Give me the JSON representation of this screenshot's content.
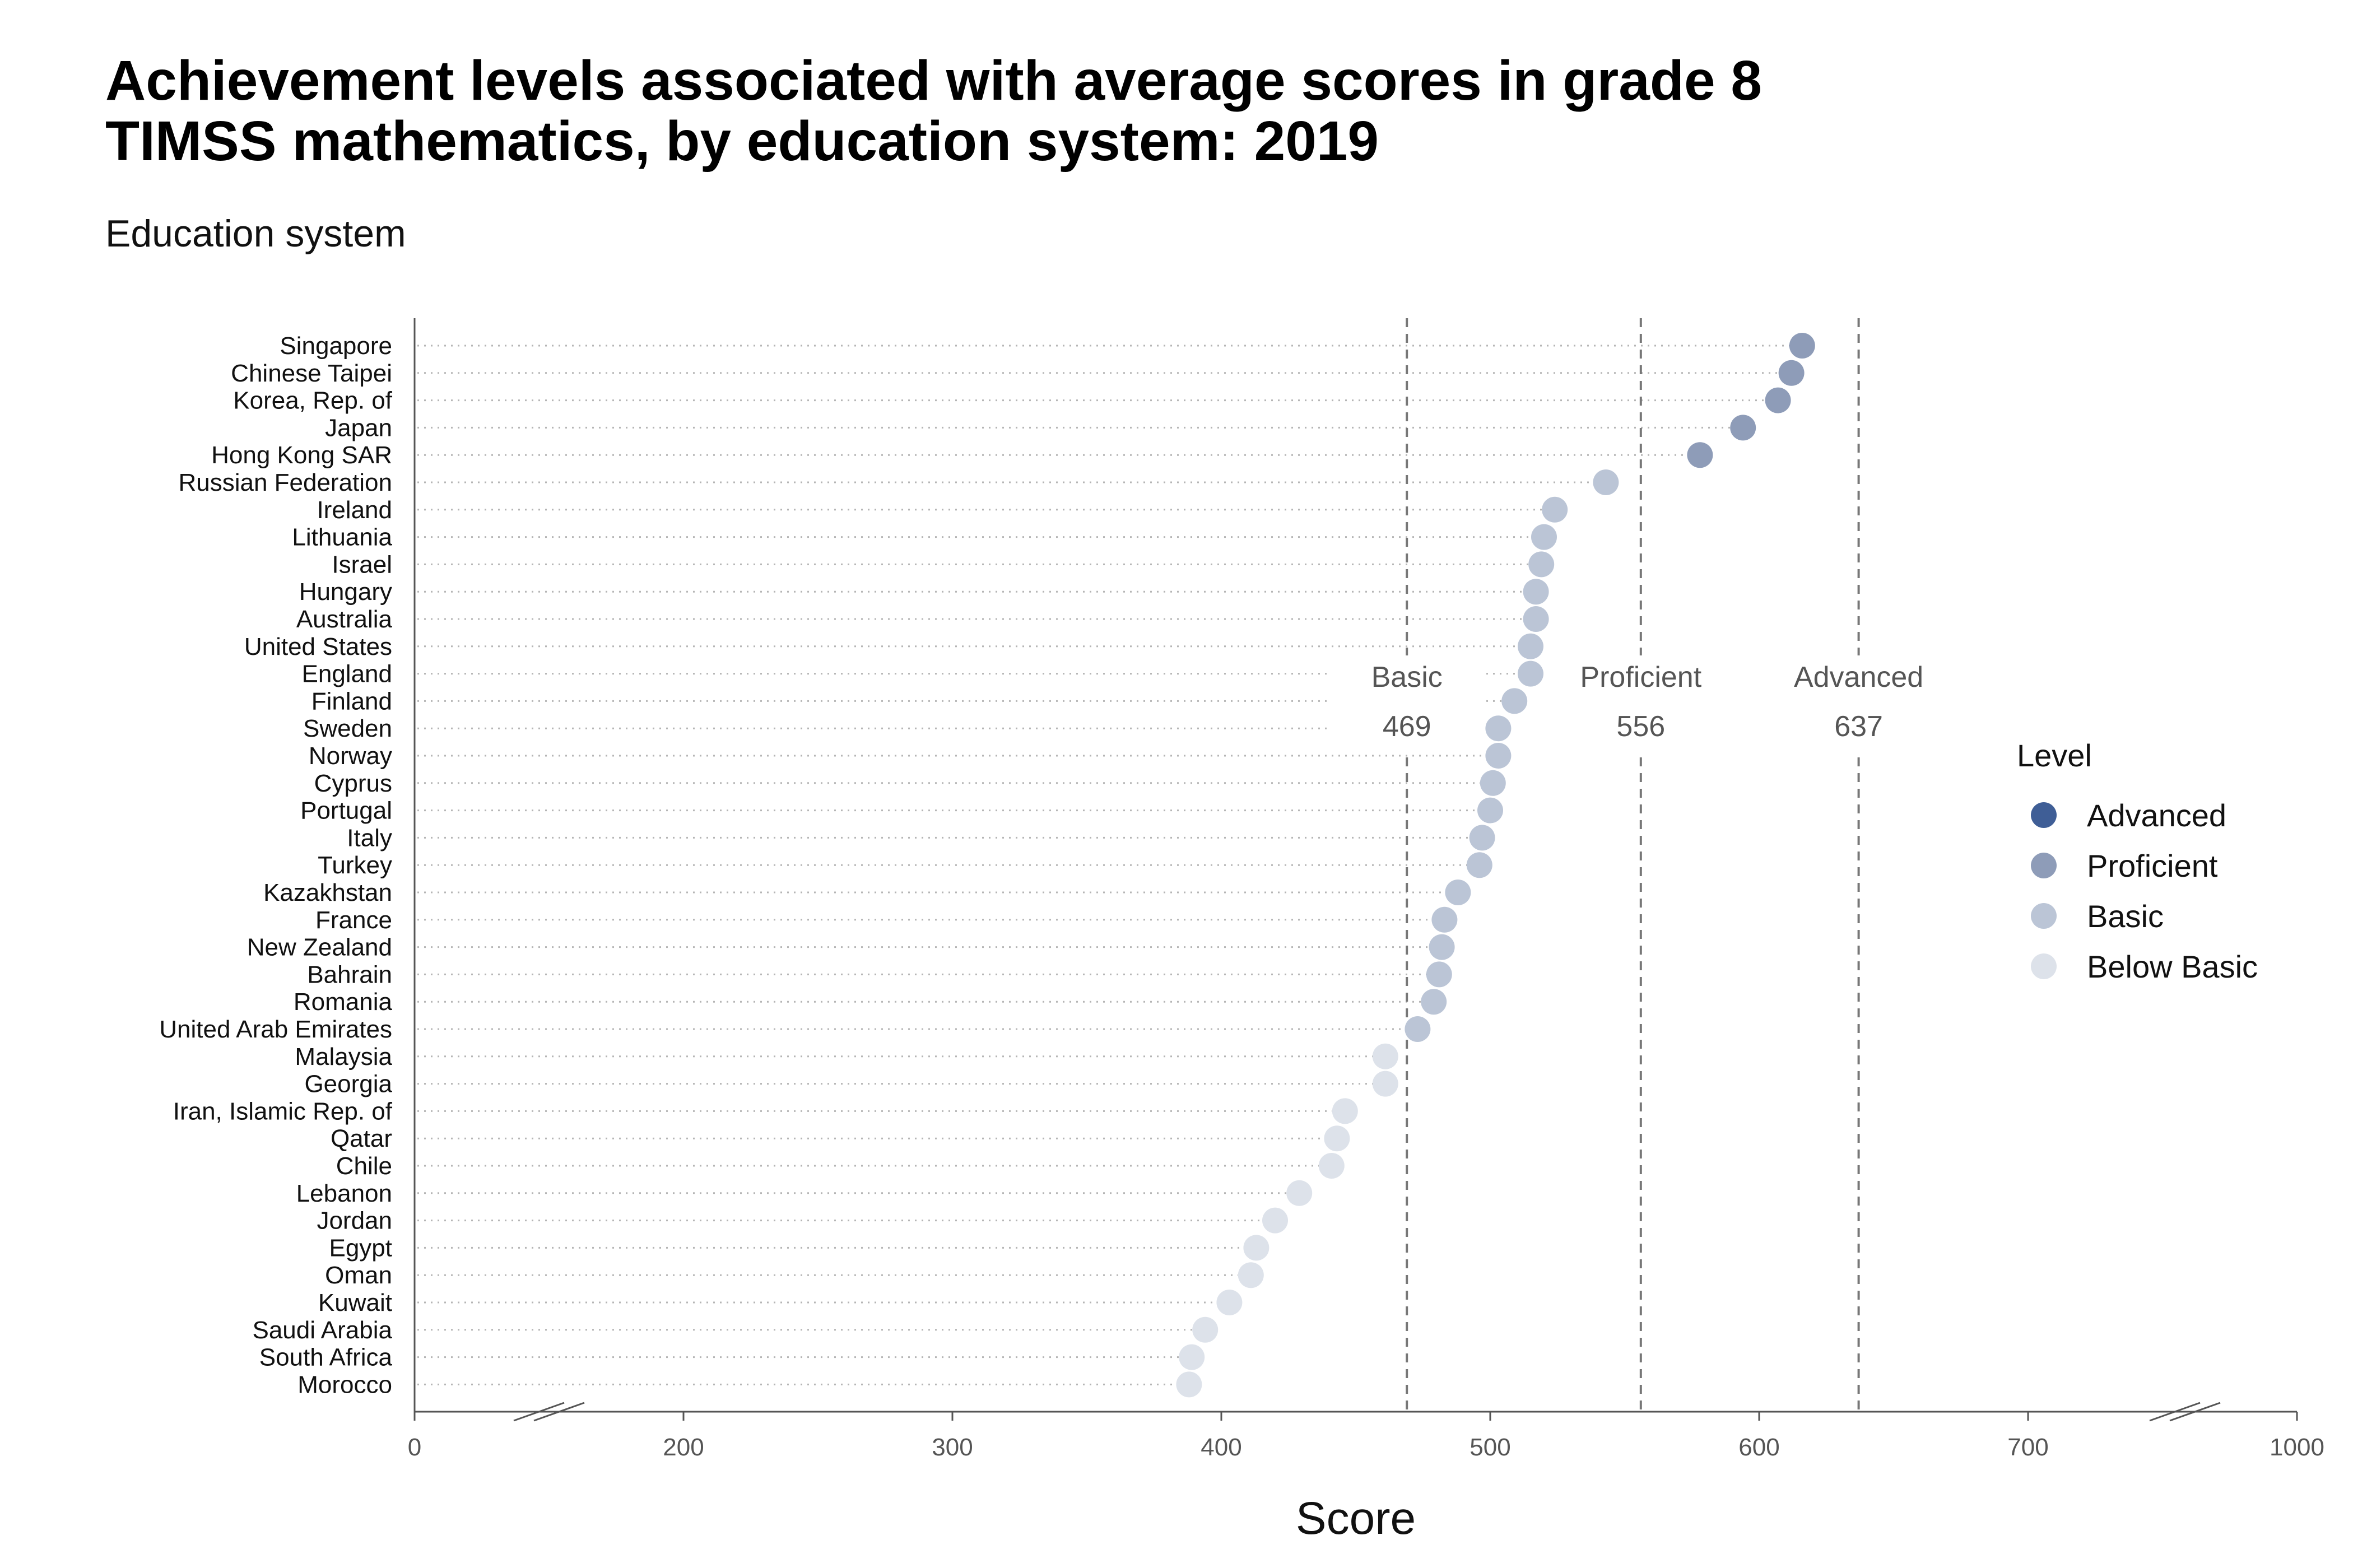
{
  "chart_data": {
    "type": "scatter",
    "title_line1": "Achievement levels associated with average scores in grade 8",
    "title_line2": "TIMSS mathematics, by education system: 2019",
    "ylabel": "Education system",
    "xlabel": "Score",
    "xlim": [
      0,
      1000
    ],
    "x_ticks": [
      "0",
      "200",
      "300",
      "400",
      "500",
      "600",
      "700",
      "1000"
    ],
    "x_tick_values": [
      0,
      200,
      300,
      400,
      500,
      600,
      700,
      1000
    ],
    "axis_breaks": true,
    "grid": "dotted horizontal",
    "legend_position": "right",
    "legend_title": "Level",
    "levels": [
      {
        "name": "Advanced",
        "color": "#3f5e96"
      },
      {
        "name": "Proficient",
        "color": "#8e9cb8"
      },
      {
        "name": "Basic",
        "color": "#bbc5d6"
      },
      {
        "name": "Below Basic",
        "color": "#dde2ea"
      }
    ],
    "thresholds": [
      {
        "label": "Basic",
        "value": 469,
        "value_text": "469"
      },
      {
        "label": "Proficient",
        "value": 556,
        "value_text": "556"
      },
      {
        "label": "Advanced",
        "value": 637,
        "value_text": "637"
      }
    ],
    "points": [
      {
        "country": "Singapore",
        "score": 616,
        "level": "Proficient"
      },
      {
        "country": "Chinese Taipei",
        "score": 612,
        "level": "Proficient"
      },
      {
        "country": "Korea, Rep. of",
        "score": 607,
        "level": "Proficient"
      },
      {
        "country": "Japan",
        "score": 594,
        "level": "Proficient"
      },
      {
        "country": "Hong Kong SAR",
        "score": 578,
        "level": "Proficient"
      },
      {
        "country": "Russian Federation",
        "score": 543,
        "level": "Basic"
      },
      {
        "country": "Ireland",
        "score": 524,
        "level": "Basic"
      },
      {
        "country": "Lithuania",
        "score": 520,
        "level": "Basic"
      },
      {
        "country": "Israel",
        "score": 519,
        "level": "Basic"
      },
      {
        "country": "Hungary",
        "score": 517,
        "level": "Basic"
      },
      {
        "country": "Australia",
        "score": 517,
        "level": "Basic"
      },
      {
        "country": "United States",
        "score": 515,
        "level": "Basic"
      },
      {
        "country": "England",
        "score": 515,
        "level": "Basic"
      },
      {
        "country": "Finland",
        "score": 509,
        "level": "Basic"
      },
      {
        "country": "Sweden",
        "score": 503,
        "level": "Basic"
      },
      {
        "country": "Norway",
        "score": 503,
        "level": "Basic"
      },
      {
        "country": "Cyprus",
        "score": 501,
        "level": "Basic"
      },
      {
        "country": "Portugal",
        "score": 500,
        "level": "Basic"
      },
      {
        "country": "Italy",
        "score": 497,
        "level": "Basic"
      },
      {
        "country": "Turkey",
        "score": 496,
        "level": "Basic"
      },
      {
        "country": "Kazakhstan",
        "score": 488,
        "level": "Basic"
      },
      {
        "country": "France",
        "score": 483,
        "level": "Basic"
      },
      {
        "country": "New Zealand",
        "score": 482,
        "level": "Basic"
      },
      {
        "country": "Bahrain",
        "score": 481,
        "level": "Basic"
      },
      {
        "country": "Romania",
        "score": 479,
        "level": "Basic"
      },
      {
        "country": "United Arab Emirates",
        "score": 473,
        "level": "Basic"
      },
      {
        "country": "Malaysia",
        "score": 461,
        "level": "Below Basic"
      },
      {
        "country": "Georgia",
        "score": 461,
        "level": "Below Basic"
      },
      {
        "country": "Iran, Islamic Rep. of",
        "score": 446,
        "level": "Below Basic"
      },
      {
        "country": "Qatar",
        "score": 443,
        "level": "Below Basic"
      },
      {
        "country": "Chile",
        "score": 441,
        "level": "Below Basic"
      },
      {
        "country": "Lebanon",
        "score": 429,
        "level": "Below Basic"
      },
      {
        "country": "Jordan",
        "score": 420,
        "level": "Below Basic"
      },
      {
        "country": "Egypt",
        "score": 413,
        "level": "Below Basic"
      },
      {
        "country": "Oman",
        "score": 411,
        "level": "Below Basic"
      },
      {
        "country": "Kuwait",
        "score": 403,
        "level": "Below Basic"
      },
      {
        "country": "Saudi Arabia",
        "score": 394,
        "level": "Below Basic"
      },
      {
        "country": "South Africa",
        "score": 389,
        "level": "Below Basic"
      },
      {
        "country": "Morocco",
        "score": 388,
        "level": "Below Basic"
      }
    ]
  }
}
